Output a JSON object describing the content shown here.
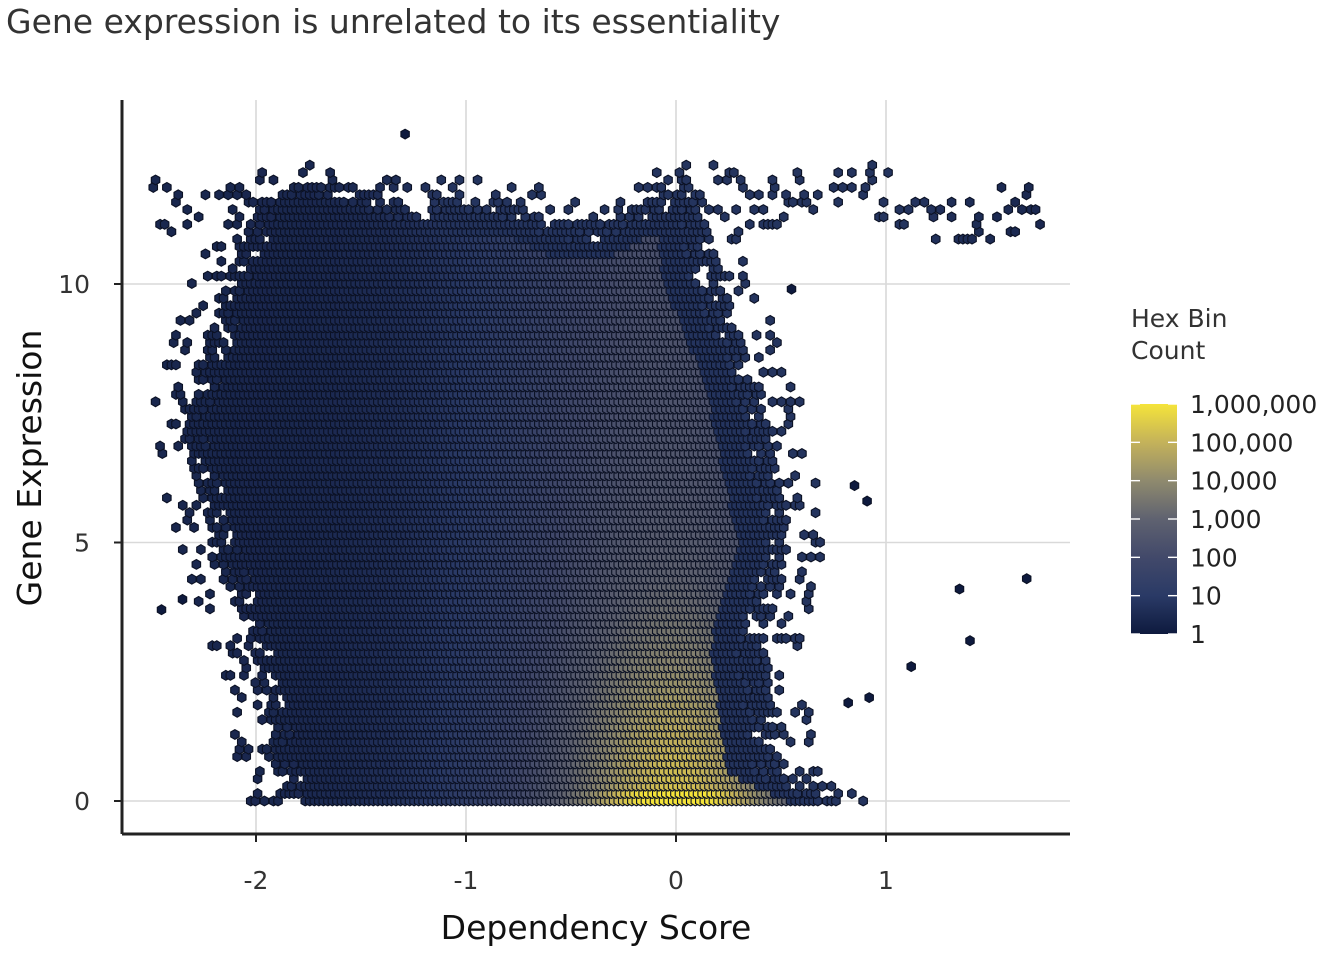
{
  "chart_data": {
    "type": "heatmap",
    "subtype": "hexbin",
    "title": "Gene expression is unrelated to its essentiality",
    "xlabel": "Dependency Score",
    "ylabel": "Gene Expression",
    "xlim": [
      -2.64,
      1.88
    ],
    "ylim": [
      -0.62,
      13.6
    ],
    "x_ticks": [
      {
        "value": -2,
        "label": "-2"
      },
      {
        "value": -1,
        "label": "-1"
      },
      {
        "value": 0,
        "label": "0"
      },
      {
        "value": 1,
        "label": "1"
      }
    ],
    "y_ticks": [
      {
        "value": 0,
        "label": "0"
      },
      {
        "value": 5,
        "label": "5"
      },
      {
        "value": 10,
        "label": "10"
      }
    ],
    "grid": true,
    "density_peak": {
      "x": 0.0,
      "y": 0.0
    },
    "outlier_points": [
      {
        "x": 1.67,
        "y": 4.3
      },
      {
        "x": 1.35,
        "y": 4.1
      },
      {
        "x": 1.4,
        "y": 3.1
      },
      {
        "x": 1.12,
        "y": 2.6
      },
      {
        "x": 0.91,
        "y": 5.8
      },
      {
        "x": 0.85,
        "y": 6.1
      },
      {
        "x": 0.55,
        "y": 9.9
      },
      {
        "x": -1.29,
        "y": 12.9
      },
      {
        "x": -2.45,
        "y": 3.7
      },
      {
        "x": -2.35,
        "y": 3.9
      },
      {
        "x": 0.82,
        "y": 1.9
      },
      {
        "x": 0.92,
        "y": 2.0
      }
    ],
    "legend": {
      "title": "Hex Bin Count",
      "title_lines": [
        "Hex Bin",
        "Count"
      ],
      "scale": "log10",
      "labels": [
        "1,000,000",
        "100,000",
        "10,000",
        "1,000",
        "100",
        "10",
        "1"
      ],
      "colors": [
        "#f5e43a",
        "#c4b25a",
        "#8f8a6e",
        "#5f6270",
        "#42496a",
        "#2a3a66",
        "#0e1a3e"
      ],
      "position": "right"
    }
  }
}
